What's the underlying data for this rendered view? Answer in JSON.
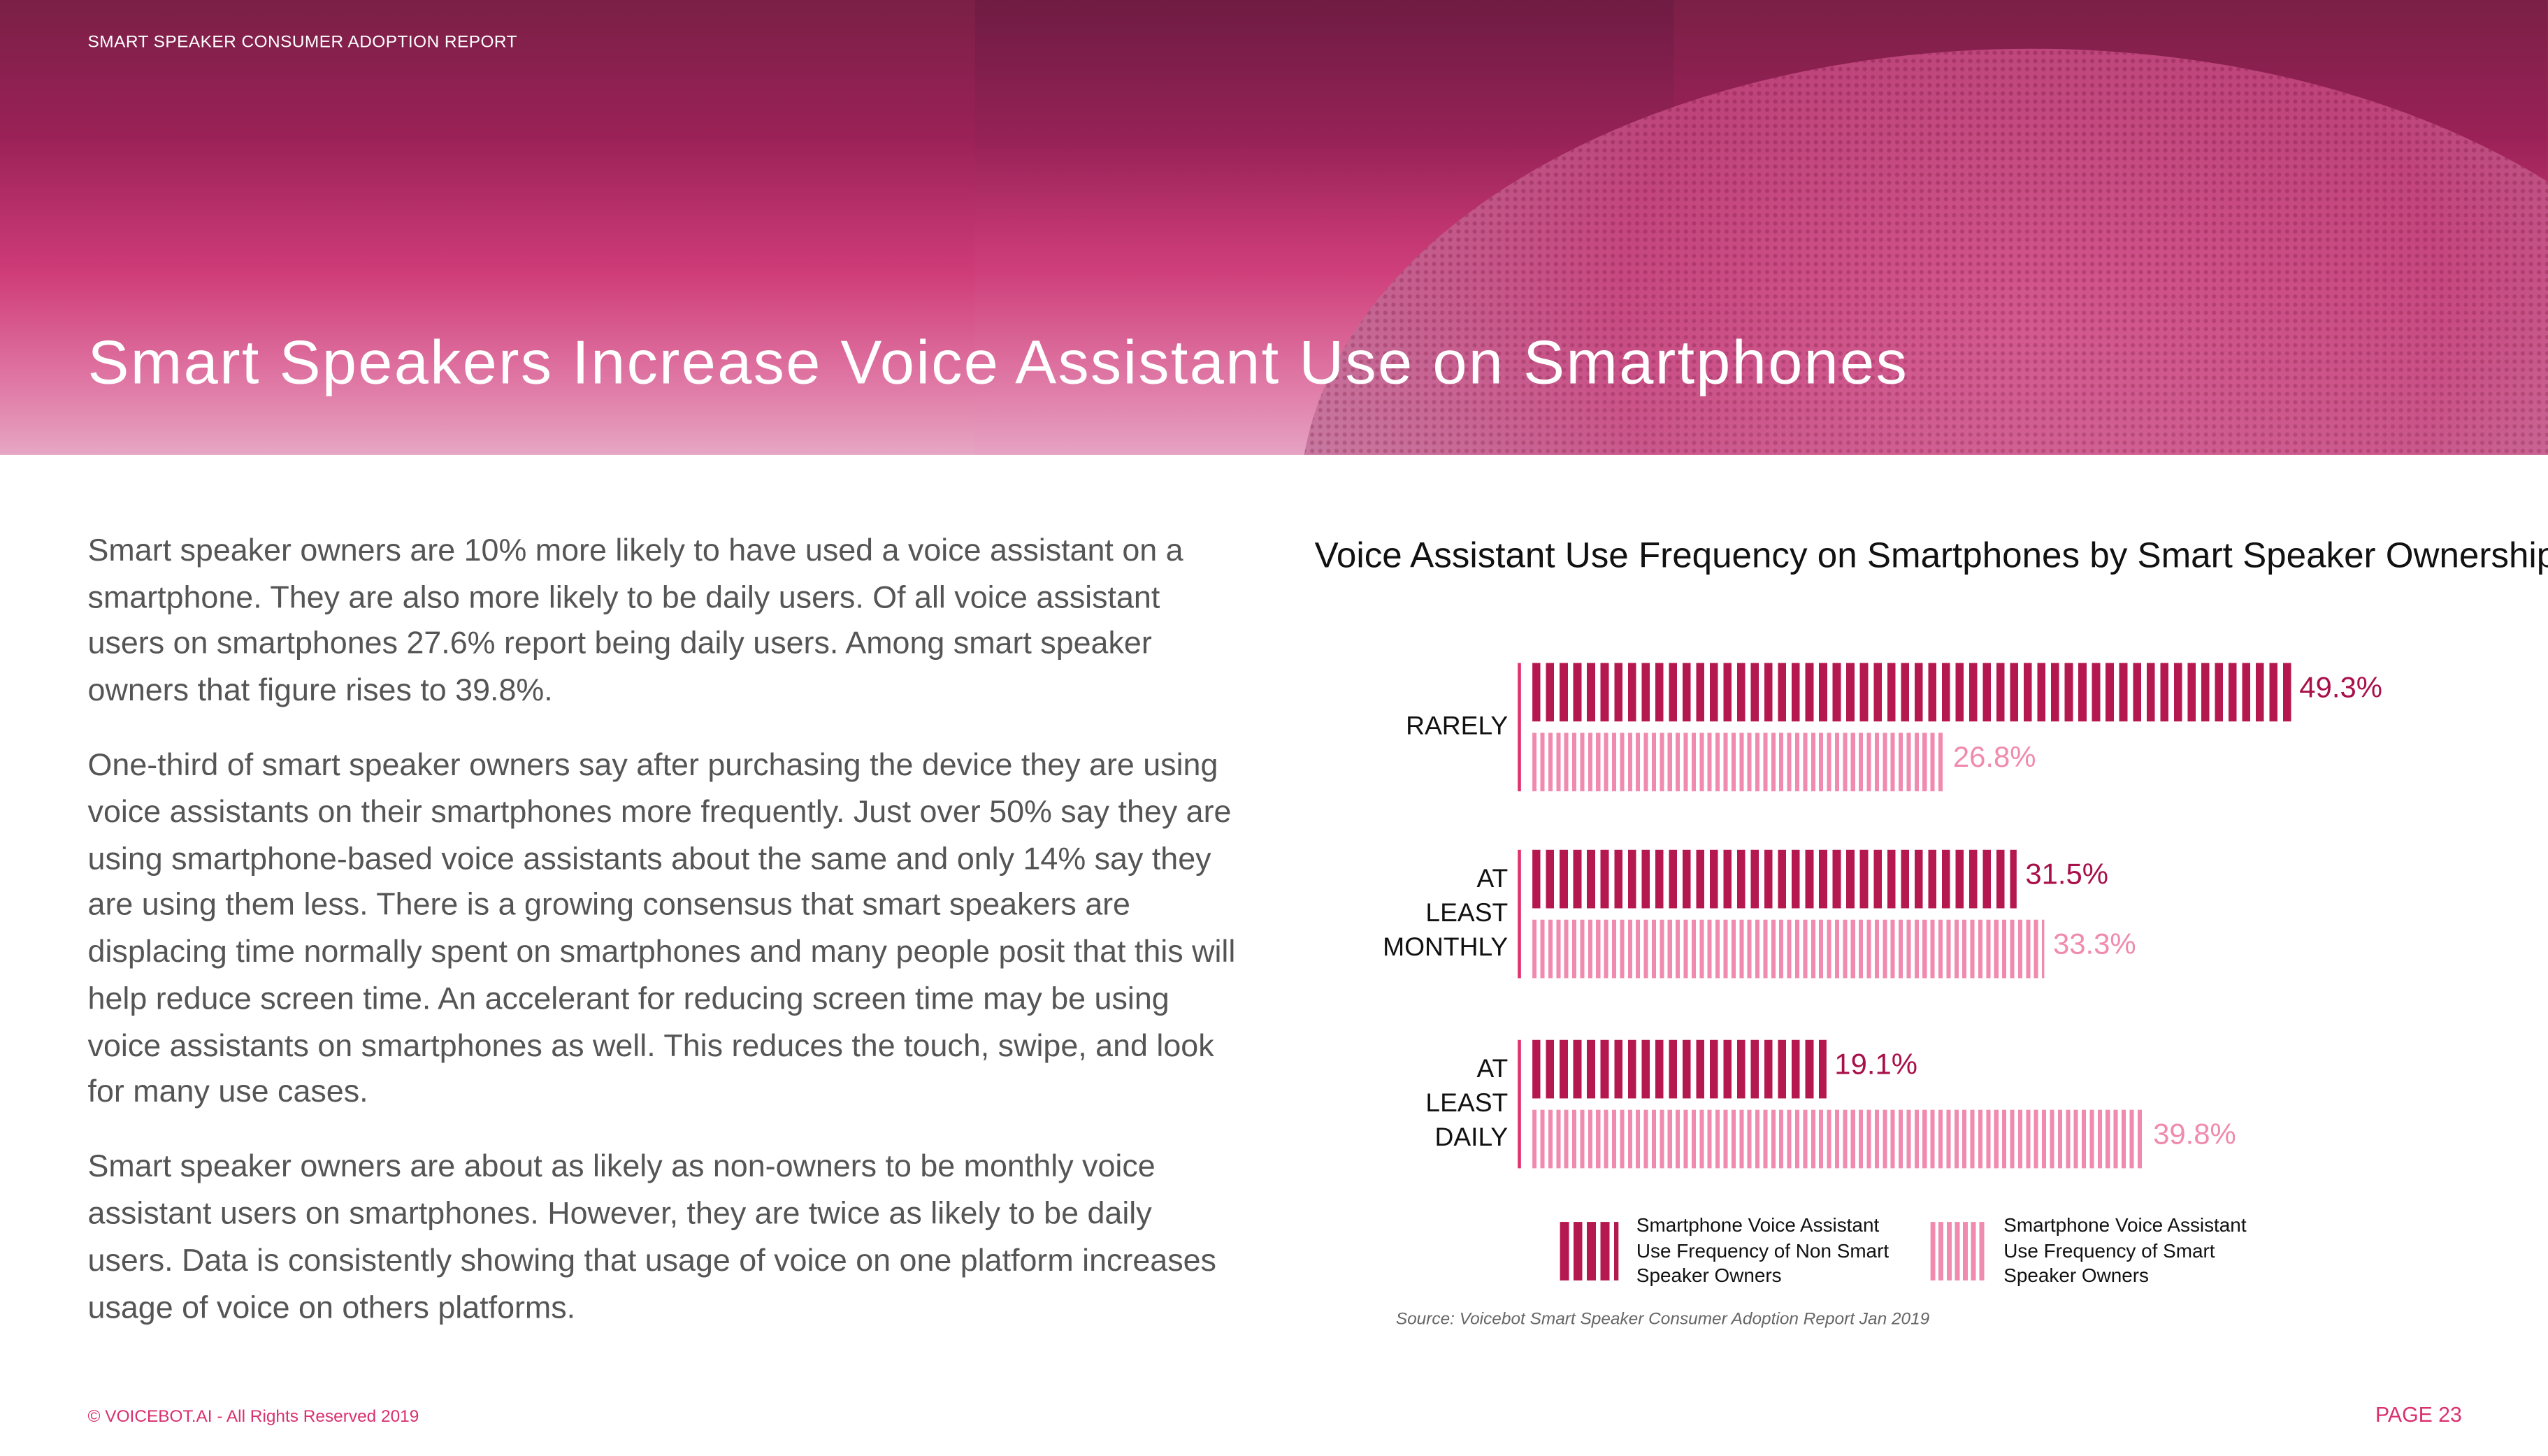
{
  "header": {
    "kicker": "SMART SPEAKER CONSUMER ADOPTION REPORT",
    "title": "Smart Speakers Increase Voice Assistant Use on Smartphones"
  },
  "body": {
    "paragraphs": [
      "Smart speaker owners are 10% more likely to have used a voice assistant on a smartphone. They are also more likely to be daily users. Of all voice assistant users on smartphones 27.6% report being daily users. Among smart speaker owners that figure rises to 39.8%.",
      "One-third of smart speaker owners say after purchasing the device they are using voice assistants on their smartphones more frequently. Just over 50% say they are using smartphone-based voice assistants about the same and only 14% say they are using them less. There is a growing consensus that smart speakers are displacing time normally spent on smartphones and many people posit that this will help reduce screen time. An accelerant for reducing screen time may be using voice assistants on smartphones as well. This reduces the touch, swipe, and look for many use cases.",
      "Smart speaker owners are about as likely as non-owners to be monthly voice assistant users on smartphones. However, they are twice as likely to be daily users. Data is consistently showing that usage of voice on one platform increases usage of voice on others platforms."
    ]
  },
  "chart_data": {
    "type": "bar",
    "orientation": "horizontal",
    "title": "Voice Assistant Use Frequency on Smartphones by Smart Speaker Ownership",
    "categories": [
      "RARELY",
      "AT LEAST MONTHLY",
      "AT LEAST DAILY"
    ],
    "category_lines": [
      [
        "RARELY"
      ],
      [
        "AT",
        "LEAST",
        "MONTHLY"
      ],
      [
        "AT",
        "LEAST",
        "DAILY"
      ]
    ],
    "series": [
      {
        "name": "Smartphone Voice Assistant Use Frequency of Non Smart Speaker Owners",
        "values": [
          49.3,
          31.5,
          19.1
        ],
        "labels": [
          "49.3%",
          "31.5%",
          "19.1%"
        ],
        "color": "#b5174f"
      },
      {
        "name": "Smartphone Voice Assistant Use Frequency of Smart Speaker Owners",
        "values": [
          26.8,
          33.3,
          39.8
        ],
        "labels": [
          "26.8%",
          "33.3%",
          "39.8%"
        ],
        "color": "#f08aae"
      }
    ],
    "unit": "%",
    "legend": "bottom",
    "grid": false,
    "source": "Source: Voicebot Smart Speaker Consumer Adoption Report Jan 2019"
  },
  "legend": {
    "dark_lines": [
      "Smartphone Voice Assistant",
      "Use Frequency of Non Smart",
      "Speaker Owners"
    ],
    "light_lines": [
      "Smartphone Voice Assistant",
      "Use Frequency of Smart",
      "Speaker Owners"
    ]
  },
  "footer": {
    "copyright": "© VOICEBOT.AI - All Rights Reserved 2019",
    "page": "PAGE 23"
  }
}
